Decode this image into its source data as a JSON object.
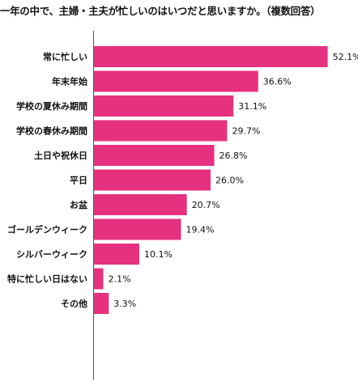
{
  "chart_data": {
    "type": "bar",
    "orientation": "horizontal",
    "title": "一年の中で、主婦・主夫が忙しいのはいつだと思いますか。（複数回答）",
    "categories": [
      "常に忙しい",
      "年末年始",
      "学校の夏休み期間",
      "学校の春休み期間",
      "土日や祝休日",
      "平日",
      "お盆",
      "ゴールデンウィーク",
      "シルバーウィーク",
      "特に忙しい日はない",
      "その他"
    ],
    "values": [
      52.1,
      36.6,
      31.1,
      29.7,
      26.8,
      26.0,
      20.7,
      19.4,
      10.1,
      2.1,
      3.3
    ],
    "value_labels": [
      "52.1%",
      "36.6%",
      "31.1%",
      "29.7%",
      "26.8%",
      "26.0%",
      "20.7%",
      "19.4%",
      "10.1%",
      "2.1%",
      "3.3%"
    ],
    "xlim": [
      0,
      60
    ],
    "grid": false,
    "legend": "none",
    "bar_color": "#e5317f",
    "axis_color": "#555555"
  }
}
